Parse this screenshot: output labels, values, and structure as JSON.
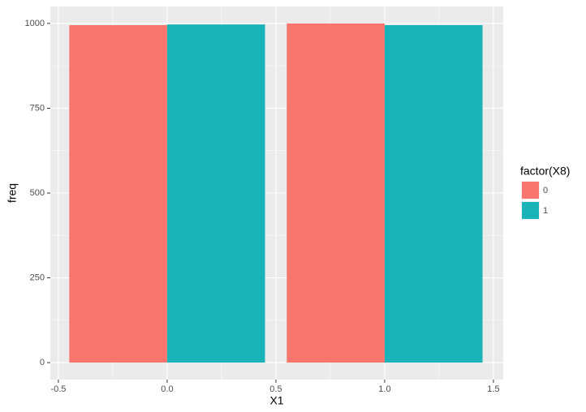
{
  "chart_data": {
    "type": "bar",
    "x": [
      0,
      1
    ],
    "series": [
      {
        "name": "0",
        "color": "#f8766d",
        "values": [
          995,
          1000
        ]
      },
      {
        "name": "1",
        "color": "#19b3b8",
        "values": [
          997,
          995
        ]
      }
    ],
    "x_label": "X1",
    "y_label": "freq",
    "legend_title": "factor(X8)",
    "xlim": [
      -0.537,
      1.545
    ],
    "ylim": [
      -50,
      1050
    ],
    "xticks": [
      {
        "value": -0.5,
        "label": "-0.5"
      },
      {
        "value": 0,
        "label": "0.0"
      },
      {
        "value": 0.5,
        "label": "0.5"
      },
      {
        "value": 1,
        "label": "1.0"
      },
      {
        "value": 1.5,
        "label": "1.5"
      }
    ],
    "yticks": [
      0,
      250,
      500,
      750,
      1000
    ],
    "grid": true,
    "legend_position": "right"
  }
}
